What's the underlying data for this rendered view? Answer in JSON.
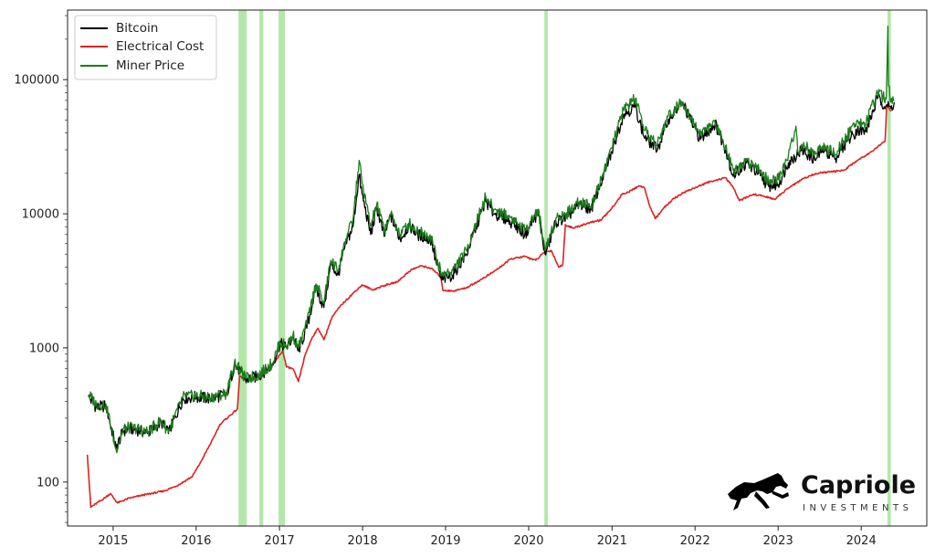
{
  "chart_data": {
    "type": "line",
    "title": "",
    "xlabel": "",
    "ylabel": "",
    "y_scale": "log",
    "ylim": [
      47,
      330000
    ],
    "xlim": [
      "2014-06-15",
      "2024-10-15"
    ],
    "grid": false,
    "legend_position": "top-left",
    "x_ticks": [
      "2015",
      "2016",
      "2017",
      "2018",
      "2019",
      "2020",
      "2021",
      "2022",
      "2023",
      "2024"
    ],
    "y_ticks": [
      "100",
      "1000",
      "10000",
      "100000"
    ],
    "y_tick_values": [
      100,
      1000,
      10000,
      100000
    ],
    "shaded_periods": [
      {
        "start": "2016-07-05",
        "end": "2016-08-10",
        "color": "#a6e39a"
      },
      {
        "start": "2016-10-05",
        "end": "2016-10-22",
        "color": "#a6e39a"
      },
      {
        "start": "2016-12-28",
        "end": "2017-01-25",
        "color": "#a6e39a"
      },
      {
        "start": "2020-03-10",
        "end": "2020-03-25",
        "color": "#a6e39a"
      },
      {
        "start": "2024-04-25",
        "end": "2024-05-10",
        "color": "#a6e39a"
      }
    ],
    "series": [
      {
        "name": "Bitcoin",
        "color": "#000000",
        "points": [
          [
            "2014-09-15",
            430
          ],
          [
            "2014-10-20",
            360
          ],
          [
            "2014-12-01",
            370
          ],
          [
            "2015-01-14",
            180
          ],
          [
            "2015-02-15",
            240
          ],
          [
            "2015-04-01",
            250
          ],
          [
            "2015-06-01",
            230
          ],
          [
            "2015-08-01",
            280
          ],
          [
            "2015-09-01",
            230
          ],
          [
            "2015-11-04",
            420
          ],
          [
            "2016-01-01",
            430
          ],
          [
            "2016-03-01",
            420
          ],
          [
            "2016-05-15",
            450
          ],
          [
            "2016-06-17",
            750
          ],
          [
            "2016-07-15",
            660
          ],
          [
            "2016-08-05",
            580
          ],
          [
            "2016-10-01",
            615
          ],
          [
            "2016-12-01",
            750
          ],
          [
            "2017-01-04",
            1080
          ],
          [
            "2017-02-01",
            1000
          ],
          [
            "2017-03-01",
            1200
          ],
          [
            "2017-03-25",
            950
          ],
          [
            "2017-05-01",
            1400
          ],
          [
            "2017-06-10",
            2800
          ],
          [
            "2017-07-15",
            2000
          ],
          [
            "2017-08-15",
            4200
          ],
          [
            "2017-09-15",
            3500
          ],
          [
            "2017-10-20",
            6000
          ],
          [
            "2017-11-20",
            8000
          ],
          [
            "2017-12-17",
            19500
          ],
          [
            "2017-12-30",
            14000
          ],
          [
            "2018-02-06",
            7000
          ],
          [
            "2018-03-05",
            11000
          ],
          [
            "2018-04-06",
            6800
          ],
          [
            "2018-05-05",
            9700
          ],
          [
            "2018-06-15",
            6500
          ],
          [
            "2018-07-25",
            8200
          ],
          [
            "2018-09-01",
            7000
          ],
          [
            "2018-10-31",
            6300
          ],
          [
            "2018-11-20",
            4300
          ],
          [
            "2018-12-15",
            3200
          ],
          [
            "2019-02-01",
            3500
          ],
          [
            "2019-04-02",
            5000
          ],
          [
            "2019-05-15",
            8000
          ],
          [
            "2019-06-26",
            12500
          ],
          [
            "2019-08-01",
            10000
          ],
          [
            "2019-09-01",
            9600
          ],
          [
            "2019-10-25",
            8500
          ],
          [
            "2019-12-15",
            7000
          ],
          [
            "2020-02-12",
            10300
          ],
          [
            "2020-03-13",
            5000
          ],
          [
            "2020-04-30",
            8700
          ],
          [
            "2020-06-15",
            9400
          ],
          [
            "2020-08-15",
            11800
          ],
          [
            "2020-10-01",
            10700
          ],
          [
            "2020-11-20",
            18500
          ],
          [
            "2020-12-31",
            29000
          ],
          [
            "2021-02-20",
            55000
          ],
          [
            "2021-04-14",
            63000
          ],
          [
            "2021-05-20",
            38000
          ],
          [
            "2021-07-20",
            30000
          ],
          [
            "2021-09-06",
            51000
          ],
          [
            "2021-11-09",
            67000
          ],
          [
            "2021-12-15",
            48000
          ],
          [
            "2022-01-25",
            36000
          ],
          [
            "2022-03-30",
            47000
          ],
          [
            "2022-05-15",
            30000
          ],
          [
            "2022-06-18",
            19000
          ],
          [
            "2022-08-15",
            24000
          ],
          [
            "2022-10-15",
            19200
          ],
          [
            "2022-11-20",
            16000
          ],
          [
            "2023-01-01",
            16500
          ],
          [
            "2023-02-15",
            24000
          ],
          [
            "2023-04-14",
            30000
          ],
          [
            "2023-06-15",
            25000
          ],
          [
            "2023-07-15",
            30500
          ],
          [
            "2023-09-10",
            25800
          ],
          [
            "2023-10-30",
            34500
          ],
          [
            "2023-12-15",
            42000
          ],
          [
            "2024-01-20",
            41000
          ],
          [
            "2024-03-13",
            72000
          ],
          [
            "2024-04-20",
            64000
          ],
          [
            "2024-05-10",
            61000
          ],
          [
            "2024-05-25",
            68000
          ]
        ]
      },
      {
        "name": "Electrical Cost",
        "color": "#dd2222",
        "points": [
          [
            "2014-09-10",
            160
          ],
          [
            "2014-09-25",
            65
          ],
          [
            "2014-11-20",
            75
          ],
          [
            "2014-12-20",
            82
          ],
          [
            "2015-01-20",
            70
          ],
          [
            "2015-03-15",
            76
          ],
          [
            "2015-05-15",
            80
          ],
          [
            "2015-08-15",
            86
          ],
          [
            "2015-10-15",
            95
          ],
          [
            "2015-12-15",
            110
          ],
          [
            "2016-01-20",
            140
          ],
          [
            "2016-03-15",
            210
          ],
          [
            "2016-04-15",
            270
          ],
          [
            "2016-06-30",
            350
          ],
          [
            "2016-07-10",
            620
          ],
          [
            "2016-08-01",
            580
          ],
          [
            "2016-09-15",
            600
          ],
          [
            "2016-11-01",
            680
          ],
          [
            "2016-12-15",
            800
          ],
          [
            "2017-01-15",
            950
          ],
          [
            "2017-02-01",
            720
          ],
          [
            "2017-03-01",
            700
          ],
          [
            "2017-03-25",
            560
          ],
          [
            "2017-04-25",
            900
          ],
          [
            "2017-05-25",
            1200
          ],
          [
            "2017-06-20",
            1400
          ],
          [
            "2017-07-15",
            1150
          ],
          [
            "2017-08-20",
            1700
          ],
          [
            "2017-10-01",
            2100
          ],
          [
            "2017-11-15",
            2500
          ],
          [
            "2017-12-30",
            2950
          ],
          [
            "2018-02-15",
            2700
          ],
          [
            "2018-04-01",
            2900
          ],
          [
            "2018-06-01",
            3100
          ],
          [
            "2018-08-01",
            3800
          ],
          [
            "2018-09-15",
            4100
          ],
          [
            "2018-11-01",
            3900
          ],
          [
            "2018-12-10",
            3400
          ],
          [
            "2018-12-20",
            2700
          ],
          [
            "2019-02-01",
            2650
          ],
          [
            "2019-04-01",
            2800
          ],
          [
            "2019-06-01",
            3200
          ],
          [
            "2019-08-01",
            3700
          ],
          [
            "2019-10-15",
            4600
          ],
          [
            "2019-12-15",
            4800
          ],
          [
            "2020-02-01",
            4500
          ],
          [
            "2020-03-12",
            5200
          ],
          [
            "2020-04-10",
            5300
          ],
          [
            "2020-05-12",
            4000
          ],
          [
            "2020-05-30",
            4200
          ],
          [
            "2020-06-10",
            8300
          ],
          [
            "2020-07-15",
            7800
          ],
          [
            "2020-09-15",
            8500
          ],
          [
            "2020-11-15",
            9000
          ],
          [
            "2020-12-31",
            11000
          ],
          [
            "2021-02-15",
            14000
          ],
          [
            "2021-03-15",
            14500
          ],
          [
            "2021-05-01",
            16200
          ],
          [
            "2021-05-25",
            15500
          ],
          [
            "2021-06-15",
            11500
          ],
          [
            "2021-07-10",
            9200
          ],
          [
            "2021-08-15",
            11000
          ],
          [
            "2021-10-01",
            13000
          ],
          [
            "2021-11-15",
            14500
          ],
          [
            "2022-01-15",
            16000
          ],
          [
            "2022-03-15",
            17500
          ],
          [
            "2022-05-15",
            18500
          ],
          [
            "2022-06-15",
            16000
          ],
          [
            "2022-07-15",
            12500
          ],
          [
            "2022-09-15",
            14000
          ],
          [
            "2022-11-01",
            13500
          ],
          [
            "2022-12-15",
            12800
          ],
          [
            "2023-02-15",
            15500
          ],
          [
            "2023-04-15",
            18000
          ],
          [
            "2023-06-15",
            20000
          ],
          [
            "2023-08-15",
            20500
          ],
          [
            "2023-10-15",
            21000
          ],
          [
            "2023-12-15",
            25000
          ],
          [
            "2024-02-15",
            29000
          ],
          [
            "2024-04-15",
            35000
          ],
          [
            "2024-04-22",
            65000
          ],
          [
            "2024-05-10",
            58000
          ]
        ]
      },
      {
        "name": "Miner Price",
        "color": "#1a7d1a",
        "points": [
          [
            "2014-09-15",
            450
          ],
          [
            "2014-10-20",
            380
          ],
          [
            "2014-12-01",
            380
          ],
          [
            "2015-01-14",
            175
          ],
          [
            "2015-02-15",
            250
          ],
          [
            "2015-04-01",
            255
          ],
          [
            "2015-06-01",
            235
          ],
          [
            "2015-08-01",
            290
          ],
          [
            "2015-09-01",
            235
          ],
          [
            "2015-11-04",
            430
          ],
          [
            "2016-01-01",
            440
          ],
          [
            "2016-03-01",
            430
          ],
          [
            "2016-05-15",
            460
          ],
          [
            "2016-06-17",
            780
          ],
          [
            "2016-07-15",
            670
          ],
          [
            "2016-08-05",
            590
          ],
          [
            "2016-10-01",
            625
          ],
          [
            "2016-12-01",
            770
          ],
          [
            "2017-01-04",
            1100
          ],
          [
            "2017-02-01",
            1030
          ],
          [
            "2017-03-01",
            1250
          ],
          [
            "2017-03-25",
            1000
          ],
          [
            "2017-05-01",
            1500
          ],
          [
            "2017-06-10",
            3000
          ],
          [
            "2017-07-15",
            2200
          ],
          [
            "2017-08-15",
            4500
          ],
          [
            "2017-09-15",
            3800
          ],
          [
            "2017-10-20",
            6500
          ],
          [
            "2017-11-20",
            9000
          ],
          [
            "2017-12-17",
            25000
          ],
          [
            "2017-12-30",
            17000
          ],
          [
            "2018-02-06",
            8000
          ],
          [
            "2018-03-05",
            12000
          ],
          [
            "2018-04-06",
            7500
          ],
          [
            "2018-05-05",
            10000
          ],
          [
            "2018-06-15",
            7000
          ],
          [
            "2018-07-25",
            8500
          ],
          [
            "2018-09-01",
            7400
          ],
          [
            "2018-10-31",
            6800
          ],
          [
            "2018-11-20",
            4800
          ],
          [
            "2018-12-15",
            3500
          ],
          [
            "2019-02-01",
            3800
          ],
          [
            "2019-04-02",
            5300
          ],
          [
            "2019-05-15",
            8500
          ],
          [
            "2019-06-26",
            13500
          ],
          [
            "2019-08-01",
            10800
          ],
          [
            "2019-09-01",
            10300
          ],
          [
            "2019-10-25",
            9200
          ],
          [
            "2019-12-15",
            7500
          ],
          [
            "2020-02-12",
            10800
          ],
          [
            "2020-03-13",
            5300
          ],
          [
            "2020-04-30",
            9300
          ],
          [
            "2020-06-15",
            10000
          ],
          [
            "2020-08-15",
            12500
          ],
          [
            "2020-10-01",
            11300
          ],
          [
            "2020-11-20",
            19500
          ],
          [
            "2020-12-31",
            31000
          ],
          [
            "2021-02-20",
            60000
          ],
          [
            "2021-04-14",
            72000
          ],
          [
            "2021-05-20",
            42000
          ],
          [
            "2021-07-20",
            33000
          ],
          [
            "2021-09-06",
            55000
          ],
          [
            "2021-11-09",
            68000
          ],
          [
            "2021-12-15",
            52000
          ],
          [
            "2022-01-25",
            40000
          ],
          [
            "2022-03-30",
            48000
          ],
          [
            "2022-05-15",
            32000
          ],
          [
            "2022-06-18",
            21000
          ],
          [
            "2022-08-15",
            25000
          ],
          [
            "2022-10-15",
            20500
          ],
          [
            "2022-11-20",
            17500
          ],
          [
            "2023-01-01",
            18000
          ],
          [
            "2023-02-15",
            27000
          ],
          [
            "2023-03-20",
            45000
          ],
          [
            "2023-03-28",
            29000
          ],
          [
            "2023-04-14",
            33000
          ],
          [
            "2023-06-15",
            28000
          ],
          [
            "2023-07-15",
            32000
          ],
          [
            "2023-09-10",
            27500
          ],
          [
            "2023-10-30",
            38000
          ],
          [
            "2023-12-15",
            50000
          ],
          [
            "2024-01-20",
            46000
          ],
          [
            "2024-03-13",
            80000
          ],
          [
            "2024-04-20",
            72000
          ],
          [
            "2024-04-27",
            250000
          ],
          [
            "2024-04-30",
            90000
          ],
          [
            "2024-05-10",
            68000
          ],
          [
            "2024-05-25",
            70000
          ]
        ]
      }
    ]
  },
  "branding": {
    "name": "Capriole",
    "tagline": "INVESTMENTS",
    "logo_icon": "leaping-horse-icon"
  }
}
